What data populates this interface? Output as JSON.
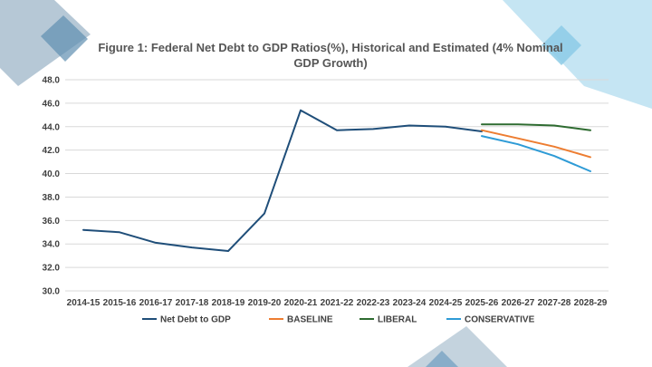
{
  "chart_data": {
    "type": "line",
    "title": "Figure 1: Federal Net Debt to GDP Ratios(%), Historical and Estimated (4% Nominal GDP Growth)",
    "xlabel": "",
    "ylabel": "",
    "ylim": [
      30,
      48
    ],
    "y_ticks": [
      "30.0",
      "32.0",
      "34.0",
      "36.0",
      "38.0",
      "40.0",
      "42.0",
      "44.0",
      "46.0",
      "48.0"
    ],
    "categories": [
      "2014-15",
      "2015-16",
      "2016-17",
      "2017-18",
      "2018-19",
      "2019-20",
      "2020-21",
      "2021-22",
      "2022-23",
      "2023-24",
      "2024-25",
      "2025-26",
      "2026-27",
      "2027-28",
      "2028-29"
    ],
    "grid": true,
    "legend_position": "bottom",
    "series": [
      {
        "name": "Net Debt to GDP",
        "color": "#1f4e79",
        "values": [
          35.2,
          35.0,
          34.1,
          33.7,
          33.4,
          36.6,
          45.4,
          43.7,
          43.8,
          44.1,
          44.0,
          43.6,
          null,
          null,
          null
        ]
      },
      {
        "name": "BASELINE",
        "color": "#ed7d31",
        "values": [
          null,
          null,
          null,
          null,
          null,
          null,
          null,
          null,
          null,
          null,
          null,
          43.7,
          43.0,
          42.3,
          41.4
        ]
      },
      {
        "name": "LIBERAL",
        "color": "#2e6b30",
        "values": [
          null,
          null,
          null,
          null,
          null,
          null,
          null,
          null,
          null,
          null,
          null,
          44.2,
          44.2,
          44.1,
          43.7
        ]
      },
      {
        "name": "CONSERVATIVE",
        "color": "#2e9bd6",
        "values": [
          null,
          null,
          null,
          null,
          null,
          null,
          null,
          null,
          null,
          null,
          null,
          43.2,
          42.5,
          41.5,
          40.2
        ]
      }
    ]
  }
}
